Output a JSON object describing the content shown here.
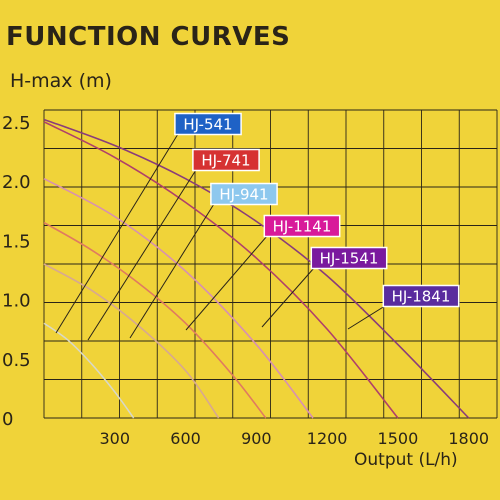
{
  "chart_data": {
    "type": "line",
    "title": "FUNCTION CURVES",
    "ylabel": "H-max (m)",
    "xlabel": "Output (L/h)",
    "x_ticks": [
      "300",
      "600",
      "900",
      "1200",
      "1500",
      "1800"
    ],
    "y_ticks": [
      "0",
      "0.5",
      "1.0",
      "1.5",
      "2.0",
      "2.5"
    ],
    "xlim": [
      0,
      1920
    ],
    "ylim": [
      0,
      2.6
    ],
    "grid": true,
    "series": [
      {
        "name": "HJ-541",
        "color": "#1f62c6",
        "curve_color": "#d8d8c8",
        "points": [
          [
            0,
            0.8
          ],
          [
            100,
            0.66
          ],
          [
            200,
            0.46
          ],
          [
            300,
            0.22
          ],
          [
            380,
            0
          ]
        ]
      },
      {
        "name": "HJ-741",
        "color": "#d63232",
        "curve_color": "#d8a890",
        "points": [
          [
            0,
            1.3
          ],
          [
            200,
            1.08
          ],
          [
            400,
            0.78
          ],
          [
            600,
            0.4
          ],
          [
            740,
            0
          ]
        ]
      },
      {
        "name": "HJ-941",
        "color": "#8ec8ee",
        "curve_color": "#e07a60",
        "points": [
          [
            0,
            1.65
          ],
          [
            200,
            1.42
          ],
          [
            400,
            1.14
          ],
          [
            600,
            0.8
          ],
          [
            800,
            0.36
          ],
          [
            940,
            0
          ]
        ]
      },
      {
        "name": "HJ-1141",
        "color": "#d81a9a",
        "curve_color": "#d890b0",
        "points": [
          [
            0,
            2.02
          ],
          [
            300,
            1.7
          ],
          [
            600,
            1.24
          ],
          [
            900,
            0.62
          ],
          [
            1140,
            0
          ]
        ]
      },
      {
        "name": "HJ-1541",
        "color": "#7a1a9e",
        "curve_color": "#b0406a",
        "points": [
          [
            0,
            2.5
          ],
          [
            300,
            2.2
          ],
          [
            600,
            1.82
          ],
          [
            900,
            1.35
          ],
          [
            1200,
            0.75
          ],
          [
            1500,
            0
          ]
        ]
      },
      {
        "name": "HJ-1841",
        "color": "#5a2c9e",
        "curve_color": "#8a3c7a",
        "points": [
          [
            0,
            2.52
          ],
          [
            300,
            2.3
          ],
          [
            600,
            2.02
          ],
          [
            900,
            1.66
          ],
          [
            1200,
            1.2
          ],
          [
            1500,
            0.62
          ],
          [
            1800,
            0
          ]
        ]
      }
    ]
  }
}
